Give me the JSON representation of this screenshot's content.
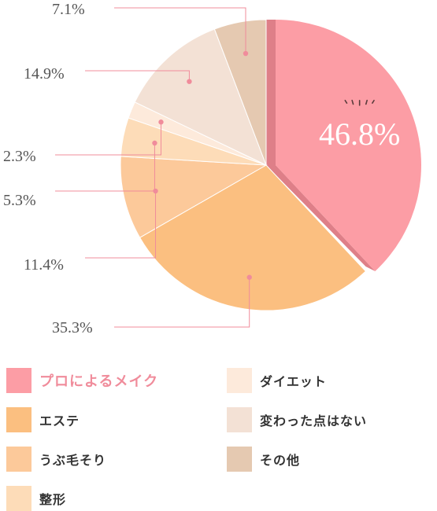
{
  "chart_data": {
    "type": "pie",
    "categories": [
      "プロによるメイク",
      "エステ",
      "うぶ毛そり",
      "整形",
      "ダイエット",
      "変わった点はない",
      "その他"
    ],
    "values": [
      46.8,
      35.3,
      11.4,
      5.3,
      2.3,
      14.9,
      7.1
    ],
    "value_labels": [
      "46.8%",
      "35.3%",
      "11.4%",
      "5.3%",
      "2.3%",
      "14.9%",
      "7.1%"
    ],
    "colors": [
      "#fc9da5",
      "#fbbf80",
      "#fcc99a",
      "#fddcb8",
      "#fdeadb",
      "#f3e1d5",
      "#e5c9b1"
    ],
    "highlight_color": "#f08c9b",
    "highlight_shadow": "#de7f88",
    "leader_color": "#f08c9b",
    "highlighted": 0,
    "legend_placement": "bottom"
  }
}
